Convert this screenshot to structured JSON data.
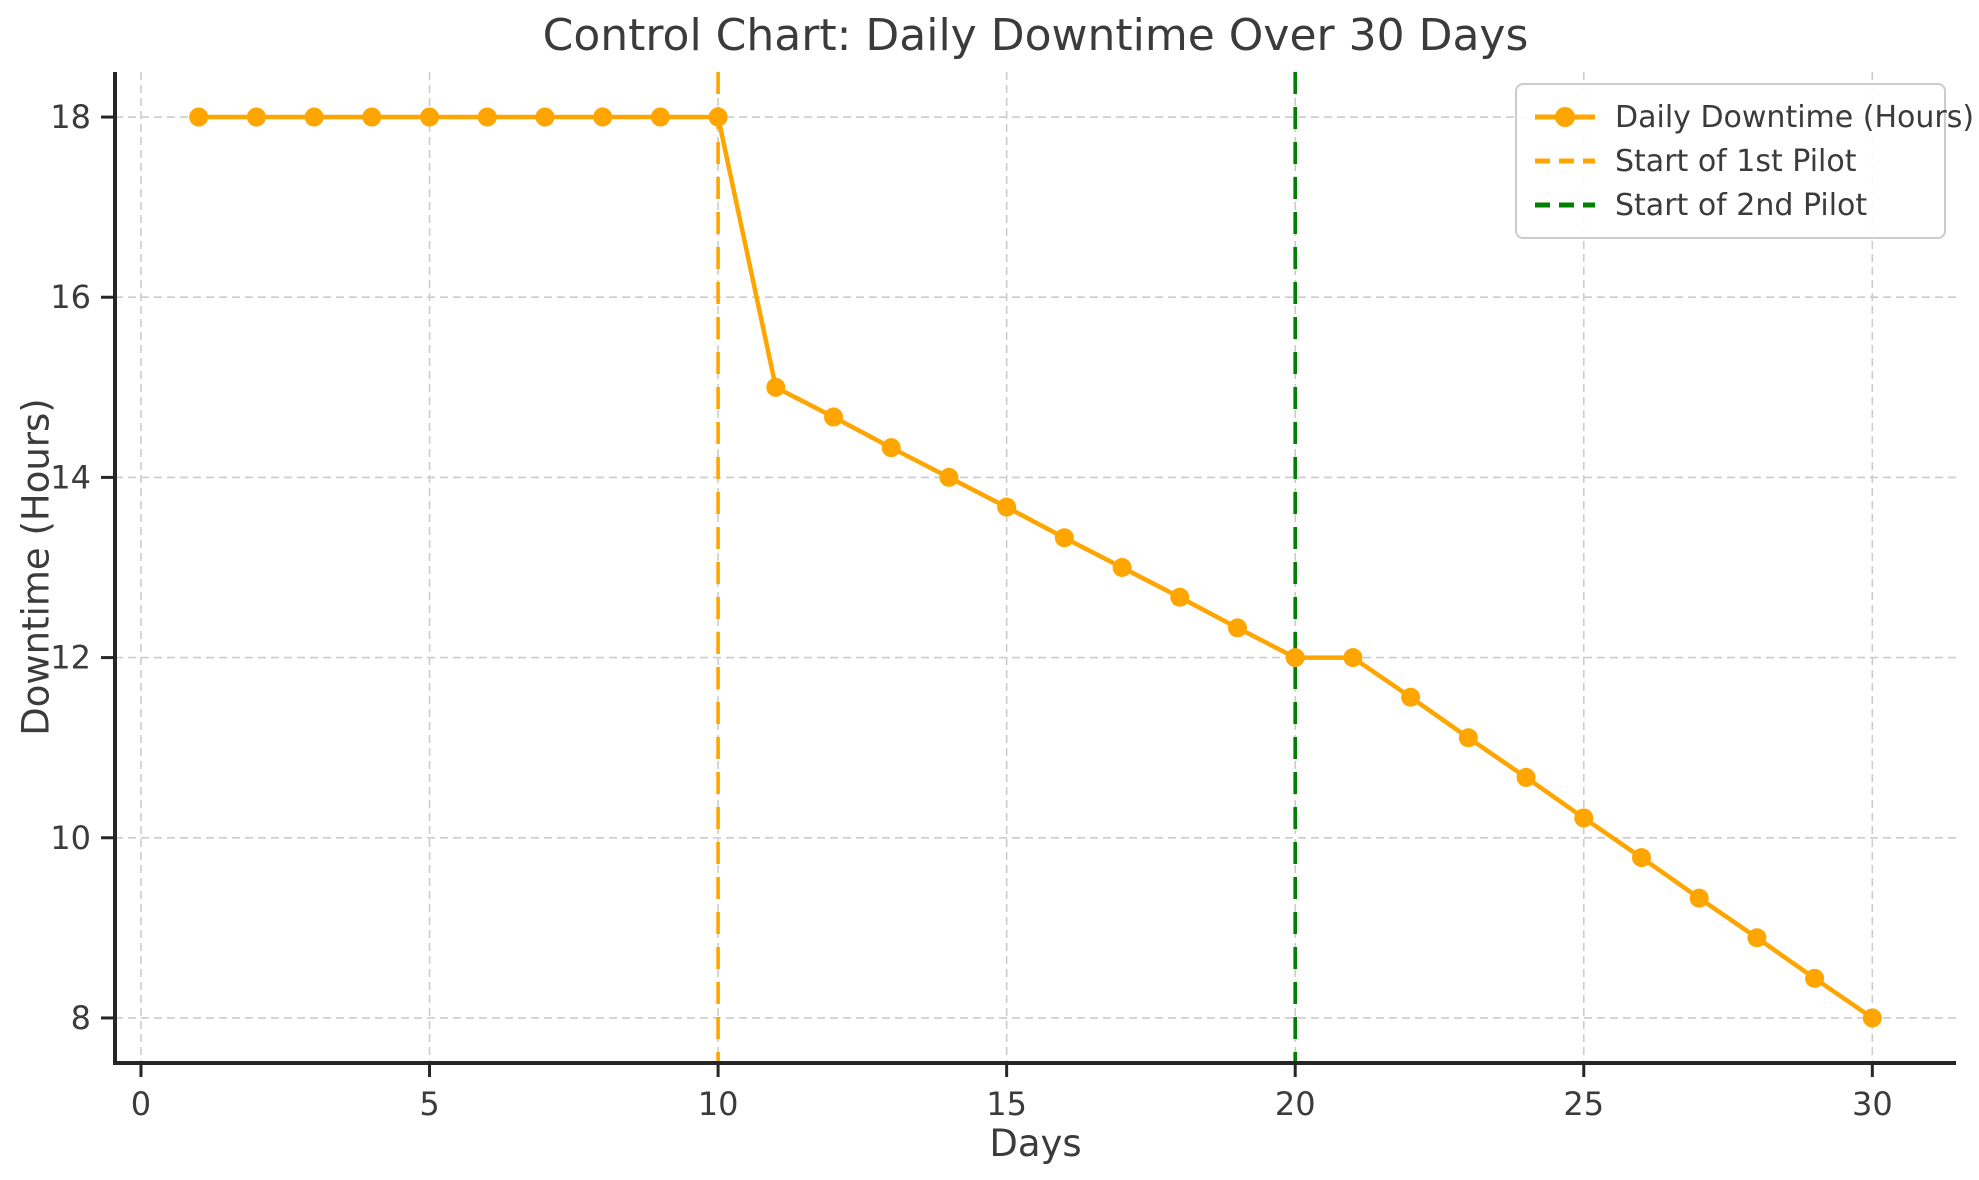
{
  "chart_data": {
    "type": "line",
    "title": "Control Chart: Daily Downtime Over 30 Days",
    "xlabel": "Days",
    "ylabel": "Downtime (Hours)",
    "x_ticks": [
      0,
      5,
      10,
      15,
      20,
      25,
      30
    ],
    "y_ticks": [
      8,
      10,
      12,
      14,
      16,
      18
    ],
    "xlim": [
      -0.45,
      31.45
    ],
    "ylim": [
      7.5,
      18.5
    ],
    "grid": true,
    "grid_style": "dashed",
    "legend_position": "upper right",
    "series": [
      {
        "name": "Daily Downtime (Hours)",
        "color": "#FFA500",
        "marker": "circle",
        "line_style": "solid",
        "x": [
          1,
          2,
          3,
          4,
          5,
          6,
          7,
          8,
          9,
          10,
          11,
          12,
          13,
          14,
          15,
          16,
          17,
          18,
          19,
          20,
          21,
          22,
          23,
          24,
          25,
          26,
          27,
          28,
          29,
          30
        ],
        "values": [
          18,
          18,
          18,
          18,
          18,
          18,
          18,
          18,
          18,
          18,
          15,
          14.67,
          14.33,
          14,
          13.67,
          13.33,
          13,
          12.67,
          12.33,
          12,
          12,
          11.56,
          11.11,
          10.67,
          10.22,
          9.78,
          9.33,
          8.89,
          8.44,
          8
        ]
      }
    ],
    "vlines": [
      {
        "label": "Start of 1st Pilot",
        "x": 10,
        "color": "#FFA500",
        "style": "dashed"
      },
      {
        "label": "Start of 2nd Pilot",
        "x": 20,
        "color": "#008000",
        "style": "dashed"
      }
    ],
    "colors": {
      "grid": "#cccccc",
      "spine": "#262626",
      "text": "#3b3b3b",
      "background": "#ffffff"
    }
  }
}
